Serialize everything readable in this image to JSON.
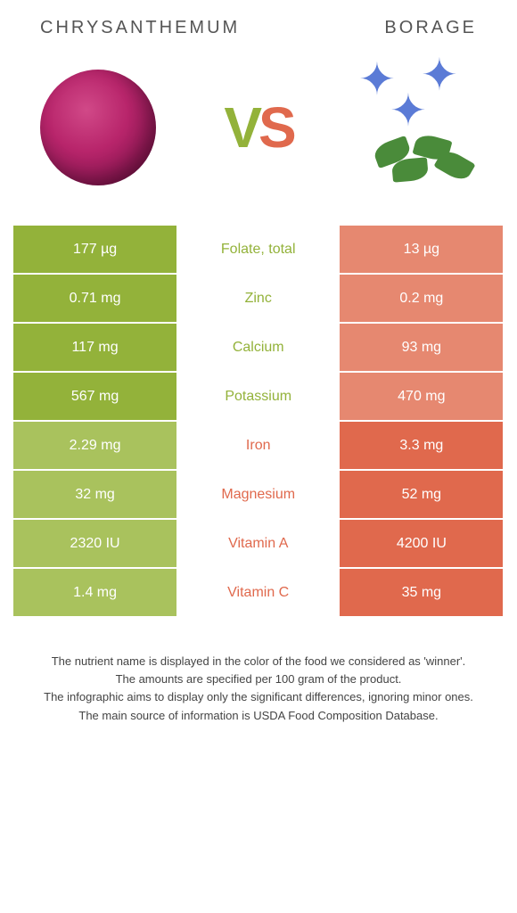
{
  "colors": {
    "green": "#93b23a",
    "green_dim": "#a9c25d",
    "orange": "#e0694d",
    "orange_dim": "#e68870"
  },
  "header": {
    "left_title": "Chrysanthemum",
    "right_title": "Borage"
  },
  "vs": {
    "v": "V",
    "s": "S"
  },
  "rows": [
    {
      "left": "177 µg",
      "mid": "Folate, total",
      "right": "13 µg",
      "winner": "left"
    },
    {
      "left": "0.71 mg",
      "mid": "Zinc",
      "right": "0.2 mg",
      "winner": "left"
    },
    {
      "left": "117 mg",
      "mid": "Calcium",
      "right": "93 mg",
      "winner": "left"
    },
    {
      "left": "567 mg",
      "mid": "Potassium",
      "right": "470 mg",
      "winner": "left"
    },
    {
      "left": "2.29 mg",
      "mid": "Iron",
      "right": "3.3 mg",
      "winner": "right"
    },
    {
      "left": "32 mg",
      "mid": "Magnesium",
      "right": "52 mg",
      "winner": "right"
    },
    {
      "left": "2320 IU",
      "mid": "Vitamin A",
      "right": "4200 IU",
      "winner": "right"
    },
    {
      "left": "1.4 mg",
      "mid": "Vitamin C",
      "right": "35 mg",
      "winner": "right"
    }
  ],
  "footer": {
    "line1": "The nutrient name is displayed in the color of the food we considered as 'winner'.",
    "line2": "The amounts are specified per 100 gram of the product.",
    "line3": "The infographic aims to display only the significant differences, ignoring minor ones.",
    "line4": "The main source of information is USDA Food Composition Database."
  }
}
